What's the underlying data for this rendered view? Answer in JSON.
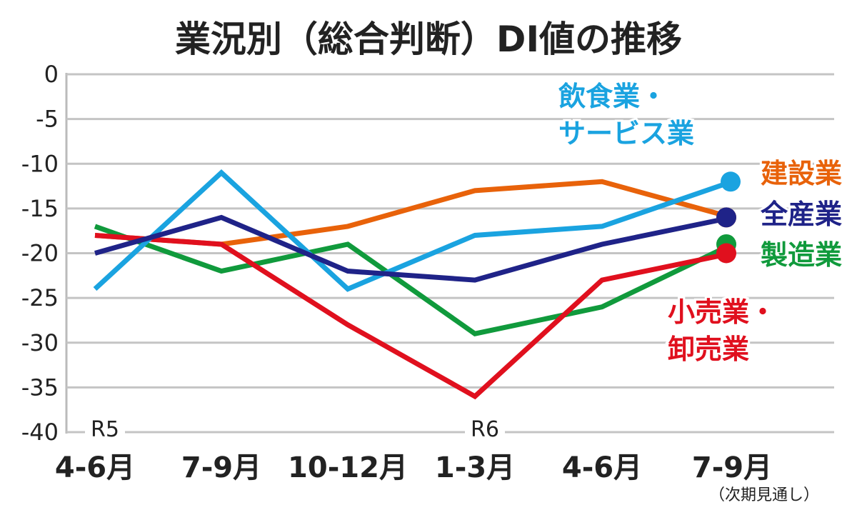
{
  "chart_data": {
    "type": "line",
    "title": "業況別（総合判断）DI値の推移",
    "xlabel": "",
    "ylabel": "",
    "ylim": [
      -40,
      0
    ],
    "yticks": [
      "0",
      "-5",
      "-10",
      "-15",
      "-20",
      "-25",
      "-30",
      "-35",
      "-40"
    ],
    "yticks_values": [
      0,
      -5,
      -10,
      -15,
      -20,
      -25,
      -30,
      -35,
      -40
    ],
    "categories": [
      "4-6月",
      "7-9月",
      "10-12月",
      "1-3月",
      "4-6月",
      "7-9月"
    ],
    "era_labels": [
      {
        "text": "R5",
        "category_index": 0
      },
      {
        "text": "R6",
        "category_index": 3
      }
    ],
    "last_category_note": "（次期見通し）",
    "grid": true,
    "legend": "right (direct labels)",
    "series": [
      {
        "name": "飲食業・サービス業",
        "label_lines": [
          "飲食業・",
          "サービス業"
        ],
        "color": "#1aa3e0",
        "values": [
          -24,
          -11,
          -24,
          -18,
          -17,
          -12
        ]
      },
      {
        "name": "建設業",
        "label_lines": [
          "建設業"
        ],
        "color": "#e8620a",
        "values": [
          -18,
          -19,
          -17,
          -13,
          -12,
          -16
        ]
      },
      {
        "name": "全産業",
        "label_lines": [
          "全産業"
        ],
        "color": "#1f2388",
        "values": [
          -20,
          -16,
          -22,
          -23,
          -19,
          -16
        ]
      },
      {
        "name": "製造業",
        "label_lines": [
          "製造業"
        ],
        "color": "#109a3c",
        "values": [
          -17,
          -22,
          -19,
          -29,
          -26,
          -19
        ]
      },
      {
        "name": "小売業・卸売業",
        "label_lines": [
          "小売業・",
          "卸売業"
        ],
        "color": "#e0101e",
        "values": [
          -18,
          -19,
          -28,
          -36,
          -23,
          -20
        ]
      }
    ]
  }
}
